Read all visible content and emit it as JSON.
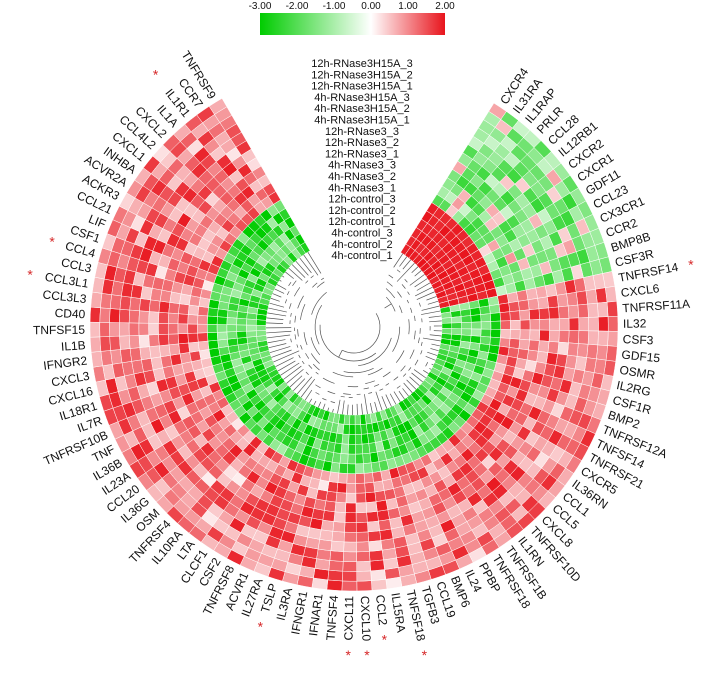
{
  "chart_data": {
    "type": "heatmap",
    "layout": "circular",
    "title": "",
    "colorbar": {
      "ticks": [
        "-3.00",
        "-2.00",
        "-1.00",
        "0.00",
        "1.00",
        "2.00"
      ],
      "min": -3,
      "max": 2,
      "low_color": "#00cc00",
      "mid_color": "#ffffff",
      "high_color": "#e8141c"
    },
    "samples": [
      "12h-RNase3H15A_3",
      "12h-RNase3H15A_2",
      "12h-RNase3H15A_1",
      "4h-RNase3H15A_3",
      "4h-RNase3H15A_2",
      "4h-RNase3H15A_1",
      "12h-RNase3_3",
      "12h-RNase3_2",
      "12h-RNase3_1",
      "4h-RNase3_3",
      "4h-RNase3_2",
      "4h-RNase3_1",
      "12h-control_3",
      "12h-control_2",
      "12h-control_1",
      "4h-control_3",
      "4h-control_2",
      "4h-control_1"
    ],
    "genes": [
      "CXCR4",
      "IL31RA",
      "IL1RAP",
      "PRLR",
      "CCL28",
      "IL12RB1",
      "CXCR2",
      "CXCR1",
      "GDF11",
      "CCL23",
      "CX3CR1",
      "CCR2",
      "BMP8B",
      "CSF3R",
      "TNFRSF14",
      "CXCL6",
      "TNFRSF11A",
      "IL32",
      "CSF3",
      "GDF15",
      "OSMR",
      "IL2RG",
      "CSF1R",
      "BMP2",
      "TNFRSF12A",
      "TNFSF14",
      "TNFRSF21",
      "CXCR5",
      "IL36RN",
      "CCL1",
      "CCL5",
      "CXCL8",
      "TNFRSF10D",
      "IL1RN",
      "TNFRSF1B",
      "TNFRSF18",
      "PPBP",
      "IL24",
      "BMP6",
      "CCL19",
      "TGFB3",
      "TNFSF18",
      "IL15RA",
      "CCL2",
      "CXCL10",
      "CXCL11",
      "TNFSF4",
      "IFNAR1",
      "IFNGR1",
      "IL3RA",
      "TSLP",
      "IL27RA",
      "ACVR1",
      "TNFRSF8",
      "CSF2",
      "CLCF1",
      "LTA",
      "IL10RA",
      "TNFRSF4",
      "OSM",
      "IL36G",
      "CCL20",
      "IL23A",
      "IL36B",
      "TNF",
      "TNFRSF10B",
      "IL7R",
      "IL18R1",
      "CXCL16",
      "CXCL3",
      "IFNGR2",
      "IL1B",
      "TNFSF15",
      "CD40",
      "CCL3L3",
      "CCL3L1",
      "CCL3",
      "CCL4",
      "CSF1",
      "LIF",
      "CCL21",
      "ACKR3",
      "ACVR2A",
      "INHBA",
      "CXCL1",
      "CCL4L2",
      "CXCL2",
      "IL1A",
      "IL1R1",
      "CCR7",
      "TNFRSF9"
    ],
    "marked_genes": [
      "TNFRSF14",
      "TSLP",
      "CXCL11",
      "CXCL10",
      "CCL2",
      "TNFSF18",
      "CCL4",
      "CCL3L1",
      "IL1R1"
    ],
    "marker": "*",
    "value_pattern": {
      "group1_genes": "CXCR4 through CSF3R",
      "group1_rnase": "mixed, mostly light green (-0.3 to -1.2) with scattered pink",
      "group1_control": "strong red (1.8 to 2.0)",
      "group2_genes": "TNFRSF14 through TNFRSF9",
      "group2_rnase": "red (0.4 to 2.0)",
      "group2_control": "green (-0.5 to -1.6)"
    }
  }
}
